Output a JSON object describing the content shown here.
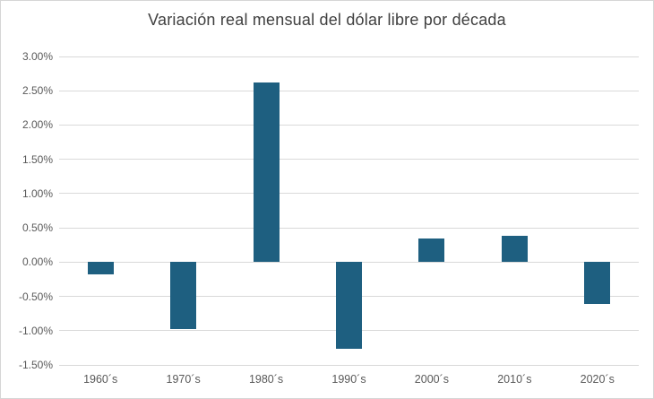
{
  "chart_data": {
    "type": "bar",
    "title": "Variación real mensual del dólar libre por década",
    "categories": [
      "1960´s",
      "1970´s",
      "1980´s",
      "1990´s",
      "2000´s",
      "2010´s",
      "2020´s"
    ],
    "values": [
      -0.18,
      -0.98,
      2.62,
      -1.27,
      0.35,
      0.39,
      -0.61
    ],
    "unit": "%",
    "xlabel": "",
    "ylabel": "",
    "ylim": [
      -1.5,
      3.0
    ],
    "ytick_step": 0.5,
    "yticks": [
      {
        "value": 3.0,
        "label": "3.00%"
      },
      {
        "value": 2.5,
        "label": "2.50%"
      },
      {
        "value": 2.0,
        "label": "2.00%"
      },
      {
        "value": 1.5,
        "label": "1.50%"
      },
      {
        "value": 1.0,
        "label": "1.00%"
      },
      {
        "value": 0.5,
        "label": "0.50%"
      },
      {
        "value": 0.0,
        "label": "0.00%"
      },
      {
        "value": -0.5,
        "label": "-0.50%"
      },
      {
        "value": -1.0,
        "label": "-1.00%"
      },
      {
        "value": -1.5,
        "label": "-1.50%"
      }
    ],
    "grid": true,
    "legend": false,
    "colors": {
      "bar": "#1E5F80",
      "gridline": "#D9D9D9",
      "tick_label": "#595959",
      "title": "#404040",
      "background": "#FFFFFF",
      "border": "#D6D6D6"
    }
  }
}
